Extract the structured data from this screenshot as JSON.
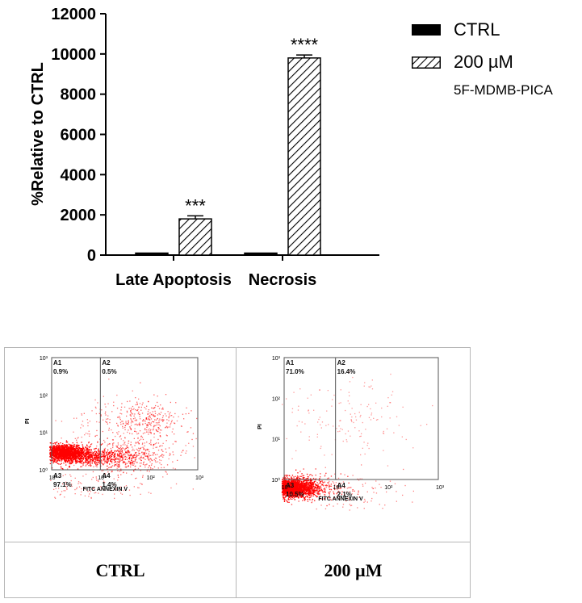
{
  "chart_data": [
    {
      "type": "bar",
      "ylabel": "%Relative to CTRL",
      "ylim": [
        0,
        12000
      ],
      "yticks": [
        0,
        2000,
        4000,
        6000,
        8000,
        10000,
        12000
      ],
      "categories": [
        "Late Apoptosis",
        "Necrosis"
      ],
      "series": [
        {
          "name": "CTRL",
          "values": [
            100,
            100
          ],
          "errors": [
            0,
            0
          ],
          "fill": "solid-black"
        },
        {
          "name": "200 µM",
          "values": [
            1800,
            9800
          ],
          "errors": [
            150,
            150
          ],
          "fill": "diagonal-hatch"
        }
      ],
      "legend": {
        "position": "top-right",
        "subtitle": "5F-MDMB-PICA"
      },
      "annotations": [
        "***",
        "****"
      ],
      "grid": false
    },
    {
      "type": "scatter",
      "panel": "CTRL",
      "xlabel": "FITC ANNEXIN V",
      "ylabel": "PI",
      "xscale": "log",
      "yscale": "log",
      "xticks": [
        "10⁰",
        "10¹",
        "10²",
        "10³"
      ],
      "yticks": [
        "10⁰",
        "10¹",
        "10²",
        "10³"
      ],
      "gate": {
        "x": 10,
        "y": 1
      },
      "quadrants": [
        {
          "id": "A1",
          "percent": "0.9%"
        },
        {
          "id": "A2",
          "percent": "0.5%"
        },
        {
          "id": "A3",
          "percent": "97.1%"
        },
        {
          "id": "A4",
          "percent": "1.4%"
        }
      ],
      "dot_color": "#ff0000"
    },
    {
      "type": "scatter",
      "panel": "200 µM",
      "xlabel": "FITC ANNEXIN V",
      "ylabel": "PI",
      "xscale": "log",
      "yscale": "log",
      "xticks": [
        "10⁰",
        "10¹",
        "10²",
        "10³"
      ],
      "yticks": [
        "10⁰",
        "10¹",
        "10²",
        "10³"
      ],
      "gate": {
        "x": 10,
        "y": 1
      },
      "quadrants": [
        {
          "id": "A1",
          "percent": "71.0%"
        },
        {
          "id": "A2",
          "percent": "16.4%"
        },
        {
          "id": "A3",
          "percent": "10.5%"
        },
        {
          "id": "A4",
          "percent": "2.1%"
        }
      ],
      "dot_color": "#ff0000"
    }
  ],
  "legend": {
    "ctrl": "CTRL",
    "treat": "200 µM",
    "treat_sub": "5F-MDMB-PICA"
  },
  "captions": {
    "ctrl": "CTRL",
    "treat": "200 µM"
  }
}
